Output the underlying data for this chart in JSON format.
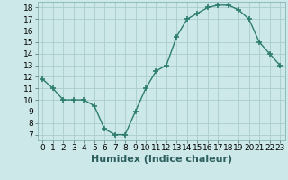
{
  "x": [
    0,
    1,
    2,
    3,
    4,
    5,
    6,
    7,
    8,
    9,
    10,
    11,
    12,
    13,
    14,
    15,
    16,
    17,
    18,
    19,
    20,
    21,
    22,
    23
  ],
  "y": [
    11.8,
    11.0,
    10.0,
    10.0,
    10.0,
    9.5,
    7.5,
    7.0,
    7.0,
    9.0,
    11.0,
    12.5,
    13.0,
    15.5,
    17.0,
    17.5,
    18.0,
    18.2,
    18.2,
    17.8,
    17.0,
    15.0,
    14.0,
    13.0
  ],
  "line_color": "#2d7d6e",
  "marker": "+",
  "marker_size": 4,
  "marker_linewidth": 1.2,
  "bg_color": "#cce8e8",
  "grid_color": "#aacccc",
  "xlabel": "Humidex (Indice chaleur)",
  "xlim": [
    -0.5,
    23.5
  ],
  "ylim": [
    6.5,
    18.5
  ],
  "yticks": [
    7,
    8,
    9,
    10,
    11,
    12,
    13,
    14,
    15,
    16,
    17,
    18
  ],
  "xticks": [
    0,
    1,
    2,
    3,
    4,
    5,
    6,
    7,
    8,
    9,
    10,
    11,
    12,
    13,
    14,
    15,
    16,
    17,
    18,
    19,
    20,
    21,
    22,
    23
  ],
  "tick_fontsize": 6.5,
  "xlabel_fontsize": 8,
  "line_width": 1.0
}
